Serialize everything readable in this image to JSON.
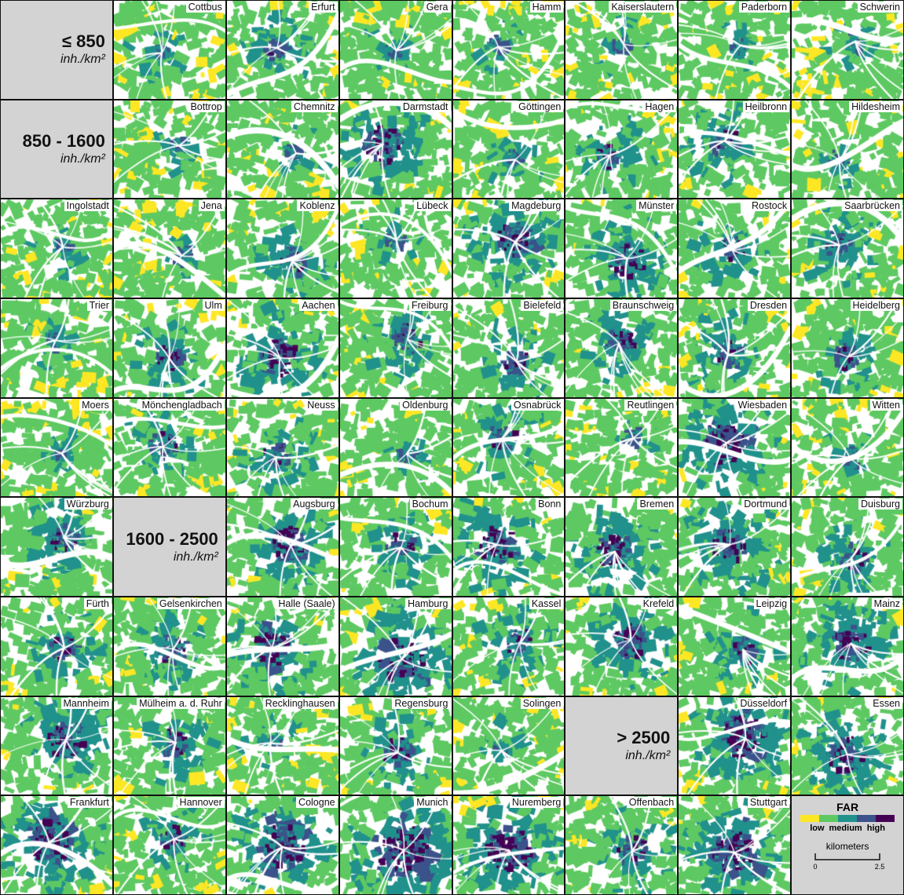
{
  "palette": {
    "white": "#ffffff",
    "low": "#fde725",
    "low_medium": "#5ec962",
    "medium": "#21918c",
    "medium_high": "#3b528b",
    "high": "#440154",
    "density_panel_bg": "#d3d3d3"
  },
  "cells": [
    {
      "type": "density",
      "range": "≤ 850",
      "unit": "inh./km²"
    },
    {
      "type": "city",
      "name": "Cottbus",
      "level": 1
    },
    {
      "type": "city",
      "name": "Erfurt",
      "level": 2
    },
    {
      "type": "city",
      "name": "Gera",
      "level": 1
    },
    {
      "type": "city",
      "name": "Hamm",
      "level": 1
    },
    {
      "type": "city",
      "name": "Kaiserslautern",
      "level": 1
    },
    {
      "type": "city",
      "name": "Paderborn",
      "level": 1
    },
    {
      "type": "city",
      "name": "Schwerin",
      "level": 1
    },
    {
      "type": "density",
      "range": "850 - 1600",
      "unit": "inh./km²"
    },
    {
      "type": "city",
      "name": "Bottrop",
      "level": 1
    },
    {
      "type": "city",
      "name": "Chemnitz",
      "level": 1
    },
    {
      "type": "city",
      "name": "Darmstadt",
      "level": 3
    },
    {
      "type": "city",
      "name": "Göttingen",
      "level": 1
    },
    {
      "type": "city",
      "name": "Hagen",
      "level": 2
    },
    {
      "type": "city",
      "name": "Heilbronn",
      "level": 2
    },
    {
      "type": "city",
      "name": "Hildesheim",
      "level": 1
    },
    {
      "type": "city",
      "name": "Ingolstadt",
      "level": 1
    },
    {
      "type": "city",
      "name": "Jena",
      "level": 1
    },
    {
      "type": "city",
      "name": "Koblenz",
      "level": 2
    },
    {
      "type": "city",
      "name": "Lübeck",
      "level": 1
    },
    {
      "type": "city",
      "name": "Magdeburg",
      "level": 3
    },
    {
      "type": "city",
      "name": "Münster",
      "level": 3
    },
    {
      "type": "city",
      "name": "Rostock",
      "level": 2
    },
    {
      "type": "city",
      "name": "Saarbrücken",
      "level": 2
    },
    {
      "type": "city",
      "name": "Trier",
      "level": 1
    },
    {
      "type": "city",
      "name": "Ulm",
      "level": 2
    },
    {
      "type": "city",
      "name": "Aachen",
      "level": 3
    },
    {
      "type": "city",
      "name": "Freiburg",
      "level": 2
    },
    {
      "type": "city",
      "name": "Bielefeld",
      "level": 2
    },
    {
      "type": "city",
      "name": "Braunschweig",
      "level": 2
    },
    {
      "type": "city",
      "name": "Dresden",
      "level": 2
    },
    {
      "type": "city",
      "name": "Heidelberg",
      "level": 2
    },
    {
      "type": "city",
      "name": "Moers",
      "level": 1
    },
    {
      "type": "city",
      "name": "Mönchengladbach",
      "level": 2
    },
    {
      "type": "city",
      "name": "Neuss",
      "level": 2
    },
    {
      "type": "city",
      "name": "Oldenburg",
      "level": 1
    },
    {
      "type": "city",
      "name": "Osnabrück",
      "level": 2
    },
    {
      "type": "city",
      "name": "Reutlingen",
      "level": 1
    },
    {
      "type": "city",
      "name": "Wiesbaden",
      "level": 4
    },
    {
      "type": "city",
      "name": "Witten",
      "level": 1
    },
    {
      "type": "city",
      "name": "Würzburg",
      "level": 2
    },
    {
      "type": "density",
      "range": "1600 - 2500",
      "unit": "inh./km²"
    },
    {
      "type": "city",
      "name": "Augsburg",
      "level": 3
    },
    {
      "type": "city",
      "name": "Bochum",
      "level": 2
    },
    {
      "type": "city",
      "name": "Bonn",
      "level": 3
    },
    {
      "type": "city",
      "name": "Bremen",
      "level": 3
    },
    {
      "type": "city",
      "name": "Dortmund",
      "level": 3
    },
    {
      "type": "city",
      "name": "Duisburg",
      "level": 2
    },
    {
      "type": "city",
      "name": "Fürth",
      "level": 2
    },
    {
      "type": "city",
      "name": "Gelsenkirchen",
      "level": 2
    },
    {
      "type": "city",
      "name": "Halle (Saale)",
      "level": 3
    },
    {
      "type": "city",
      "name": "Hamburg",
      "level": 4
    },
    {
      "type": "city",
      "name": "Kassel",
      "level": 2
    },
    {
      "type": "city",
      "name": "Krefeld",
      "level": 3
    },
    {
      "type": "city",
      "name": "Leipzig",
      "level": 2
    },
    {
      "type": "city",
      "name": "Mainz",
      "level": 3
    },
    {
      "type": "city",
      "name": "Mannheim",
      "level": 3
    },
    {
      "type": "city",
      "name": "Mülheim a. d. Ruhr",
      "level": 2
    },
    {
      "type": "city",
      "name": "Recklinghausen",
      "level": 1
    },
    {
      "type": "city",
      "name": "Regensburg",
      "level": 2
    },
    {
      "type": "city",
      "name": "Solingen",
      "level": 1
    },
    {
      "type": "density",
      "range": "> 2500",
      "unit": "inh./km²"
    },
    {
      "type": "city",
      "name": "Düsseldorf",
      "level": 4
    },
    {
      "type": "city",
      "name": "Essen",
      "level": 3
    },
    {
      "type": "city",
      "name": "Frankfurt",
      "level": 4
    },
    {
      "type": "city",
      "name": "Hannover",
      "level": 2
    },
    {
      "type": "city",
      "name": "Cologne",
      "level": 4
    },
    {
      "type": "city",
      "name": "Munich",
      "level": 5
    },
    {
      "type": "city",
      "name": "Nuremberg",
      "level": 4
    },
    {
      "type": "city",
      "name": "Offenbach",
      "level": 2
    },
    {
      "type": "city",
      "name": "Stuttgart",
      "level": 4
    },
    {
      "type": "legend"
    }
  ],
  "legend": {
    "title": "FAR",
    "low": "low",
    "medium": "medium",
    "high": "high",
    "scale_title": "kilometers",
    "scale_start": "0",
    "scale_end": "2.5"
  }
}
